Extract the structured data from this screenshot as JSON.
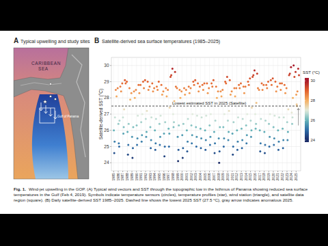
{
  "panel_a": {
    "label": "A",
    "title": "Typical upwelling and study sites",
    "map_labels": [
      "CARIBBEAN",
      "SEA",
      "Gulf of Panama"
    ]
  },
  "caption": {
    "label": "Fig. 1.",
    "text": "Wind-jet upwelling in the GOP. (A) Typical wind vectors and SST through the topographic low in the Isthmus of Panama showing reduced sea surface temperatures in the Gulf (Feb 4, 2019). Symbols indicate temperature sensors (circles), temperature profiles (star), wind station (triangle), and satellite data region (square). (B) Daily satellite-derived SST 1985–2025. Dashed line shows the lowest 2025 SST (27.5 °C), gray arrow indicates anomalous 2025."
  },
  "chart_data": {
    "type": "scatter",
    "panel_label": "B",
    "title": "Satellite-derived sea surface temperatures (1985–2025)",
    "y_label": "Satellite-derived SST (°C)",
    "grid": true,
    "xlim": [
      1984.5,
      2026
    ],
    "xticks": [
      1985,
      1986,
      1987,
      1988,
      1989,
      1990,
      1991,
      1992,
      1993,
      1994,
      1995,
      1996,
      1997,
      1998,
      1999,
      2000,
      2001,
      2002,
      2003,
      2004,
      2005,
      2006,
      2007,
      2008,
      2009,
      2010,
      2011,
      2012,
      2013,
      2014,
      2015,
      2016,
      2017,
      2018,
      2019,
      2020,
      2021,
      2022,
      2023,
      2024,
      2025
    ],
    "ylim": [
      23.5,
      30.5
    ],
    "yticks": [
      24,
      25,
      26,
      27,
      28,
      29,
      30
    ],
    "colorbar": {
      "title": "SST (°C)",
      "range": [
        23.8,
        30.3
      ],
      "ticks": [
        24,
        26,
        28,
        30
      ]
    },
    "hline": {
      "y": 27.5,
      "label": "Lowest estimated SST in 2025 (Satellite)",
      "line_style": "dashed"
    },
    "arrow": {
      "x": 2025.5,
      "y_from": 26.3,
      "y_to": 27.4,
      "color": "#9a9a9a"
    },
    "x": [
      1985.04,
      1985.13,
      1985.21,
      1985.29,
      1985.46,
      1985.63,
      1985.88,
      1986.04,
      1986.13,
      1986.21,
      1986.29,
      1986.46,
      1986.63,
      1986.88,
      1987.04,
      1987.13,
      1987.21,
      1987.29,
      1987.46,
      1987.63,
      1987.88,
      1988.04,
      1988.13,
      1988.21,
      1988.29,
      1988.46,
      1988.63,
      1988.88,
      1989.04,
      1989.13,
      1989.21,
      1989.29,
      1989.46,
      1989.63,
      1989.88,
      1990.04,
      1990.13,
      1990.21,
      1990.29,
      1990.46,
      1990.63,
      1990.88,
      1991.04,
      1991.13,
      1991.21,
      1991.29,
      1991.46,
      1991.63,
      1991.88,
      1992.04,
      1992.13,
      1992.21,
      1992.29,
      1992.46,
      1992.63,
      1992.88,
      1993.04,
      1993.13,
      1993.21,
      1993.29,
      1993.46,
      1993.63,
      1993.88,
      1994.04,
      1994.13,
      1994.21,
      1994.29,
      1994.46,
      1994.63,
      1994.88,
      1995.04,
      1995.13,
      1995.21,
      1995.29,
      1995.46,
      1995.63,
      1995.88,
      1996.04,
      1996.13,
      1996.21,
      1996.29,
      1996.46,
      1996.63,
      1996.88,
      1997.04,
      1997.13,
      1997.21,
      1997.29,
      1997.46,
      1997.63,
      1997.88,
      1998.04,
      1998.13,
      1998.21,
      1998.29,
      1998.46,
      1998.63,
      1998.88,
      1999.04,
      1999.13,
      1999.21,
      1999.29,
      1999.46,
      1999.63,
      1999.88,
      2000.04,
      2000.13,
      2000.21,
      2000.29,
      2000.46,
      2000.63,
      2000.88,
      2001.04,
      2001.13,
      2001.21,
      2001.29,
      2001.46,
      2001.63,
      2001.88,
      2002.04,
      2002.13,
      2002.21,
      2002.29,
      2002.46,
      2002.63,
      2002.88,
      2003.04,
      2003.13,
      2003.21,
      2003.29,
      2003.46,
      2003.63,
      2003.88,
      2004.04,
      2004.13,
      2004.21,
      2004.29,
      2004.46,
      2004.63,
      2004.88,
      2005.04,
      2005.13,
      2005.21,
      2005.29,
      2005.46,
      2005.63,
      2005.88,
      2006.04,
      2006.13,
      2006.21,
      2006.29,
      2006.46,
      2006.63,
      2006.88,
      2007.04,
      2007.13,
      2007.21,
      2007.29,
      2007.46,
      2007.63,
      2007.88,
      2008.04,
      2008.13,
      2008.21,
      2008.29,
      2008.46,
      2008.63,
      2008.88,
      2009.04,
      2009.13,
      2009.21,
      2009.29,
      2009.46,
      2009.63,
      2009.88,
      2010.04,
      2010.13,
      2010.21,
      2010.29,
      2010.46,
      2010.63,
      2010.88,
      2011.04,
      2011.13,
      2011.21,
      2011.29,
      2011.46,
      2011.63,
      2011.88,
      2012.04,
      2012.13,
      2012.21,
      2012.29,
      2012.46,
      2012.63,
      2012.88,
      2013.04,
      2013.13,
      2013.21,
      2013.29,
      2013.46,
      2013.63,
      2013.88,
      2014.04,
      2014.13,
      2014.21,
      2014.29,
      2014.46,
      2014.63,
      2014.88,
      2015.04,
      2015.13,
      2015.21,
      2015.29,
      2015.46,
      2015.63,
      2015.88,
      2016.04,
      2016.13,
      2016.21,
      2016.29,
      2016.46,
      2016.63,
      2016.88,
      2017.04,
      2017.13,
      2017.21,
      2017.29,
      2017.46,
      2017.63,
      2017.88,
      2018.04,
      2018.13,
      2018.21,
      2018.29,
      2018.46,
      2018.63,
      2018.88,
      2019.04,
      2019.13,
      2019.21,
      2019.29,
      2019.46,
      2019.63,
      2019.88,
      2020.04,
      2020.13,
      2020.21,
      2020.29,
      2020.46,
      2020.63,
      2020.88,
      2021.04,
      2021.13,
      2021.21,
      2021.29,
      2021.46,
      2021.63,
      2021.88,
      2022.04,
      2022.13,
      2022.21,
      2022.29,
      2022.46,
      2022.63,
      2022.88,
      2023.04,
      2023.13,
      2023.21,
      2023.29,
      2023.46,
      2023.63,
      2023.88,
      2024.04,
      2024.13,
      2024.21,
      2024.29,
      2024.46,
      2024.63,
      2024.88,
      2025.04,
      2025.13,
      2025.21,
      2025.29,
      2025.46,
      2025.63
    ],
    "values": [
      26.0,
      24.6,
      25.3,
      26.8,
      28.5,
      28.1,
      28.6,
      26.4,
      25.2,
      25.0,
      26.6,
      28.7,
      28.4,
      28.9,
      26.8,
      25.8,
      26.2,
      27.3,
      29.1,
      28.9,
      29.0,
      25.9,
      24.5,
      25.1,
      26.4,
      28.6,
      27.9,
      28.3,
      25.6,
      24.3,
      24.9,
      26.2,
      28.4,
      28.0,
      28.5,
      26.3,
      25.1,
      25.5,
      26.9,
      28.8,
      28.3,
      28.8,
      26.5,
      25.3,
      25.7,
      27.0,
      29.0,
      28.6,
      29.1,
      26.7,
      25.6,
      25.9,
      27.2,
      29.0,
      28.5,
      28.7,
      26.2,
      24.9,
      25.4,
      26.8,
      28.9,
      28.4,
      28.6,
      26.0,
      24.8,
      25.2,
      26.7,
      28.7,
      28.5,
      29.0,
      26.4,
      25.1,
      25.6,
      26.9,
      28.8,
      28.2,
      28.4,
      25.8,
      24.4,
      25.0,
      26.5,
      28.6,
      28.1,
      28.5,
      26.1,
      25.0,
      25.8,
      27.4,
      29.3,
      29.4,
      29.8,
      27.0,
      26.2,
      26.5,
      27.8,
      29.6,
      28.7,
      28.6,
      25.6,
      24.1,
      24.8,
      26.3,
      28.5,
      28.0,
      28.4,
      25.7,
      24.3,
      24.9,
      26.4,
      28.6,
      28.2,
      28.5,
      26.0,
      24.7,
      25.3,
      26.7,
      28.7,
      28.3,
      28.6,
      26.3,
      25.2,
      25.7,
      27.0,
      29.0,
      28.8,
      29.1,
      26.2,
      25.0,
      25.6,
      26.9,
      28.9,
      28.4,
      28.7,
      26.1,
      24.9,
      25.5,
      26.8,
      28.8,
      28.5,
      28.9,
      26.0,
      24.8,
      25.4,
      26.9,
      28.9,
      28.3,
      28.6,
      26.3,
      25.1,
      25.6,
      27.0,
      28.9,
      28.7,
      29.1,
      25.9,
      24.6,
      25.2,
      26.6,
      28.7,
      28.0,
      28.4,
      25.5,
      24.0,
      24.7,
      26.2,
      28.4,
      28.1,
      28.5,
      26.2,
      25.0,
      25.5,
      27.0,
      29.0,
      28.9,
      29.3,
      26.6,
      25.4,
      25.9,
      27.2,
      29.1,
      28.2,
      28.4,
      25.8,
      24.5,
      25.0,
      26.5,
      28.6,
      28.1,
      28.6,
      26.0,
      24.8,
      25.3,
      26.8,
      28.8,
      28.6,
      28.9,
      26.1,
      24.9,
      25.4,
      26.7,
      28.7,
      28.3,
      28.7,
      26.3,
      25.2,
      25.7,
      27.0,
      29.0,
      28.8,
      29.2,
      26.6,
      25.6,
      26.0,
      27.4,
      29.3,
      29.4,
      29.7,
      27.0,
      26.1,
      26.4,
      27.7,
      29.5,
      28.6,
      28.5,
      26.0,
      24.7,
      25.2,
      26.7,
      28.9,
      28.5,
      28.8,
      25.9,
      24.6,
      25.1,
      26.6,
      28.8,
      28.6,
      29.0,
      26.4,
      25.0,
      25.6,
      27.0,
      29.1,
      28.8,
      29.2,
      26.2,
      25.1,
      25.5,
      26.9,
      29.0,
      28.4,
      28.7,
      26.0,
      24.8,
      25.3,
      26.8,
      28.9,
      28.5,
      28.9,
      26.1,
      24.9,
      25.4,
      26.8,
      28.8,
      28.3,
      28.6,
      26.5,
      25.4,
      25.9,
      27.3,
      29.4,
      29.5,
      29.9,
      27.1,
      26.4,
      26.8,
      28.0,
      30.0,
      29.3,
      29.6,
      28.2,
      27.6,
      27.5,
      28.4,
      29.8,
      29.4
    ]
  }
}
